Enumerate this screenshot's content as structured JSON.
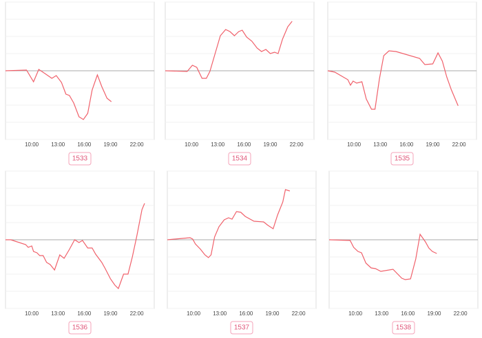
{
  "chart_data": [
    {
      "type": "line",
      "label": "1533",
      "color": "#f0606a",
      "xlim": [
        7,
        24
      ],
      "ylim": [
        -4,
        4
      ],
      "baseline": 0,
      "yticks": [
        -4,
        -3,
        -2,
        -1,
        0,
        1,
        2,
        3,
        4
      ],
      "xticks": [
        {
          "value": 10,
          "label": "10:00"
        },
        {
          "value": 13,
          "label": "13:00"
        },
        {
          "value": 16,
          "label": "16:00"
        },
        {
          "value": 19,
          "label": "19:00"
        },
        {
          "value": 22,
          "label": "22:00"
        }
      ],
      "x": [
        7,
        9.4,
        10.2,
        10.8,
        11.5,
        12.3,
        12.8,
        13.4,
        13.9,
        14.3,
        14.8,
        15.4,
        15.9,
        16.4,
        16.9,
        17.5,
        18,
        18.6,
        19.1
      ],
      "values": [
        0,
        0.04,
        -0.64,
        0.08,
        -0.16,
        -0.44,
        -0.28,
        -0.68,
        -1.36,
        -1.44,
        -1.88,
        -2.68,
        -2.84,
        -2.48,
        -1.12,
        -0.24,
        -0.92,
        -1.6,
        -1.8
      ]
    },
    {
      "type": "line",
      "label": "1534",
      "color": "#f0606a",
      "xlim": [
        7,
        24
      ],
      "ylim": [
        -4,
        4
      ],
      "baseline": 0,
      "yticks": [
        -4,
        -3,
        -2,
        -1,
        0,
        1,
        2,
        3,
        4
      ],
      "xticks": [
        {
          "value": 10,
          "label": "10:00"
        },
        {
          "value": 13,
          "label": "13:00"
        },
        {
          "value": 16,
          "label": "16:00"
        },
        {
          "value": 19,
          "label": "19:00"
        },
        {
          "value": 22,
          "label": "22:00"
        }
      ],
      "x": [
        7,
        9.5,
        10.1,
        10.6,
        11.2,
        11.7,
        12.1,
        12.7,
        13.3,
        13.9,
        14.4,
        14.9,
        15.4,
        15.8,
        16.3,
        16.9,
        17.5,
        18,
        18.5,
        19,
        19.5,
        19.9,
        20.4,
        21,
        21.5
      ],
      "values": [
        0,
        -0.04,
        0.32,
        0.2,
        -0.44,
        -0.44,
        -0.04,
        1,
        2.04,
        2.4,
        2.28,
        2.04,
        2.28,
        2.36,
        1.96,
        1.72,
        1.32,
        1.12,
        1.24,
        1,
        1.08,
        1,
        1.84,
        2.56,
        2.88
      ]
    },
    {
      "type": "line",
      "label": "1535",
      "color": "#f0606a",
      "xlim": [
        7,
        24
      ],
      "ylim": [
        -4,
        4
      ],
      "baseline": 0,
      "yticks": [
        -4,
        -3,
        -2,
        -1,
        0,
        1,
        2,
        3,
        4
      ],
      "xticks": [
        {
          "value": 10,
          "label": "10:00"
        },
        {
          "value": 13,
          "label": "13:00"
        },
        {
          "value": 16,
          "label": "16:00"
        },
        {
          "value": 19,
          "label": "19:00"
        },
        {
          "value": 22,
          "label": "22:00"
        }
      ],
      "x": [
        7,
        7.8,
        9.3,
        9.6,
        9.9,
        10.3,
        10.9,
        11.4,
        12,
        12.4,
        12.9,
        13.4,
        14,
        14.8,
        17.5,
        18.1,
        19,
        19.6,
        20.1,
        20.6,
        21.1,
        21.9
      ],
      "values": [
        0,
        -0.08,
        -0.52,
        -0.84,
        -0.6,
        -0.72,
        -0.64,
        -1.64,
        -2.24,
        -2.24,
        -0.48,
        0.88,
        1.16,
        1.12,
        0.72,
        0.36,
        0.4,
        1.04,
        0.56,
        -0.36,
        -1.08,
        -2.04
      ]
    },
    {
      "type": "line",
      "label": "1536",
      "color": "#f0606a",
      "xlim": [
        7,
        24
      ],
      "ylim": [
        -4,
        4
      ],
      "baseline": 0,
      "yticks": [
        -4,
        -3,
        -2,
        -1,
        0,
        1,
        2,
        3,
        4
      ],
      "xticks": [
        {
          "value": 10,
          "label": "10:00"
        },
        {
          "value": 13,
          "label": "13:00"
        },
        {
          "value": 16,
          "label": "16:00"
        },
        {
          "value": 19,
          "label": "19:00"
        },
        {
          "value": 22,
          "label": "22:00"
        }
      ],
      "x": [
        7,
        7.6,
        9.3,
        9.6,
        10,
        10.2,
        10.6,
        10.9,
        11.3,
        11.7,
        12.1,
        12.6,
        13.2,
        13.7,
        14.3,
        14.9,
        15.4,
        15.8,
        16.4,
        16.9,
        17.3,
        18,
        18.4,
        19,
        19.5,
        19.9,
        20.5,
        21,
        21.5,
        22,
        22.6,
        22.9
      ],
      "values": [
        0,
        0,
        -0.28,
        -0.44,
        -0.36,
        -0.68,
        -0.76,
        -0.92,
        -0.92,
        -1.32,
        -1.44,
        -1.76,
        -0.88,
        -1.08,
        -0.56,
        0,
        -0.16,
        -0.04,
        -0.48,
        -0.48,
        -0.84,
        -1.32,
        -1.68,
        -2.28,
        -2.64,
        -2.84,
        -2,
        -2,
        -1,
        0.2,
        1.76,
        2.12
      ]
    },
    {
      "type": "line",
      "label": "1537",
      "color": "#f0606a",
      "xlim": [
        7,
        24
      ],
      "ylim": [
        -4,
        4
      ],
      "baseline": 0,
      "yticks": [
        -4,
        -3,
        -2,
        -1,
        0,
        1,
        2,
        3,
        4
      ],
      "xticks": [
        {
          "value": 10,
          "label": "10:00"
        },
        {
          "value": 13,
          "label": "13:00"
        },
        {
          "value": 16,
          "label": "16:00"
        },
        {
          "value": 19,
          "label": "19:00"
        },
        {
          "value": 22,
          "label": "22:00"
        }
      ],
      "x": [
        7,
        9.6,
        9.9,
        10.2,
        10.8,
        11.3,
        11.7,
        12,
        12.4,
        12.9,
        13.5,
        14,
        14.4,
        14.9,
        15.4,
        15.9,
        16.9,
        18,
        18.5,
        19.1,
        19.6,
        20.2,
        20.5,
        21
      ],
      "values": [
        0,
        0.12,
        0.04,
        -0.24,
        -0.56,
        -0.88,
        -1.04,
        -0.88,
        0.16,
        0.76,
        1.16,
        1.28,
        1.2,
        1.64,
        1.6,
        1.36,
        1.08,
        1.04,
        0.84,
        0.64,
        1.44,
        2.2,
        2.92,
        2.84
      ]
    },
    {
      "type": "line",
      "label": "1538",
      "color": "#f0606a",
      "xlim": [
        7,
        24
      ],
      "ylim": [
        -4,
        4
      ],
      "baseline": 0,
      "yticks": [
        -4,
        -3,
        -2,
        -1,
        0,
        1,
        2,
        3,
        4
      ],
      "xticks": [
        {
          "value": 10,
          "label": "10:00"
        },
        {
          "value": 13,
          "label": "13:00"
        },
        {
          "value": 16,
          "label": "16:00"
        },
        {
          "value": 19,
          "label": "19:00"
        },
        {
          "value": 22,
          "label": "22:00"
        }
      ],
      "x": [
        7,
        9.4,
        9.8,
        10.3,
        10.7,
        11.2,
        11.8,
        12.3,
        12.9,
        14.3,
        15.3,
        15.7,
        16.3,
        16.9,
        17.4,
        18,
        18.4,
        18.8,
        19.3
      ],
      "values": [
        0,
        -0.04,
        -0.44,
        -0.68,
        -0.76,
        -1.36,
        -1.64,
        -1.68,
        -1.84,
        -1.72,
        -2.24,
        -2.32,
        -2.28,
        -1.12,
        0.32,
        -0.12,
        -0.48,
        -0.68,
        -0.8
      ]
    }
  ]
}
